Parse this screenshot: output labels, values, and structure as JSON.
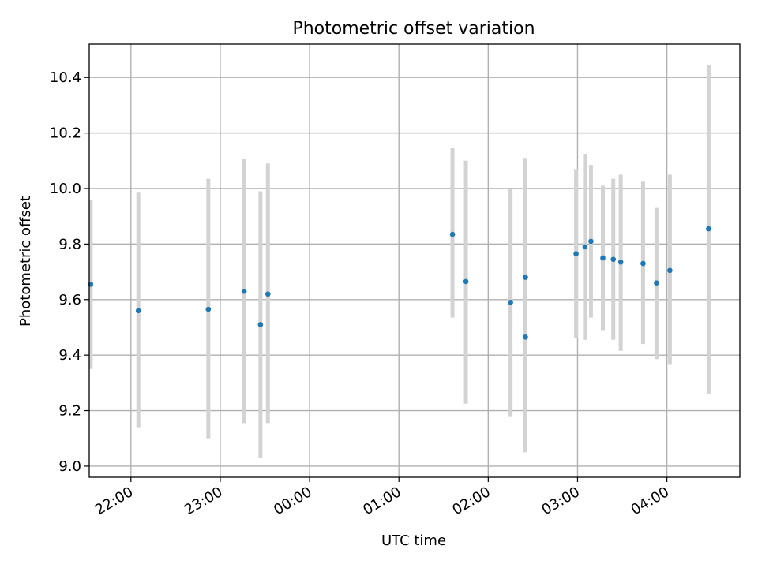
{
  "chart_data": {
    "type": "scatter",
    "title": "Photometric offset variation",
    "xlabel": "UTC time",
    "ylabel": "Photometric offset",
    "x_unit": "UTC time (HH:MM)",
    "xlim": [
      "21:32",
      "04:49"
    ],
    "ylim": [
      8.96,
      10.52
    ],
    "x_ticks": [
      "22:00",
      "23:00",
      "00:00",
      "01:00",
      "02:00",
      "03:00",
      "04:00"
    ],
    "y_ticks": [
      9.0,
      9.2,
      9.4,
      9.6,
      9.8,
      10.0,
      10.2,
      10.4
    ],
    "y_tick_labels": [
      "9.0",
      "9.2",
      "9.4",
      "9.6",
      "9.8",
      "10.0",
      "10.2",
      "10.4"
    ],
    "grid": true,
    "colors": {
      "point": "#1f77b4",
      "error_bar": "#d3d3d3"
    },
    "points": [
      {
        "t": "21:33",
        "y": 9.655,
        "lo": 9.35,
        "hi": 9.96
      },
      {
        "t": "22:05",
        "y": 9.56,
        "lo": 9.14,
        "hi": 9.985
      },
      {
        "t": "22:52",
        "y": 9.565,
        "lo": 9.1,
        "hi": 10.035
      },
      {
        "t": "23:16",
        "y": 9.63,
        "lo": 9.155,
        "hi": 10.105
      },
      {
        "t": "23:27",
        "y": 9.51,
        "lo": 9.03,
        "hi": 9.99
      },
      {
        "t": "23:32",
        "y": 9.62,
        "lo": 9.155,
        "hi": 10.09
      },
      {
        "t": "01:36",
        "y": 9.835,
        "lo": 9.535,
        "hi": 10.145
      },
      {
        "t": "01:45",
        "y": 9.665,
        "lo": 9.225,
        "hi": 10.1
      },
      {
        "t": "02:15",
        "y": 9.59,
        "lo": 9.18,
        "hi": 10.0
      },
      {
        "t": "02:25",
        "y": 9.465,
        "lo": 9.05,
        "hi": 9.885
      },
      {
        "t": "02:25",
        "y": 9.68,
        "lo": 9.245,
        "hi": 10.11
      },
      {
        "t": "02:59",
        "y": 9.765,
        "lo": 9.46,
        "hi": 10.07
      },
      {
        "t": "03:05",
        "y": 9.79,
        "lo": 9.455,
        "hi": 10.125
      },
      {
        "t": "03:09",
        "y": 9.81,
        "lo": 9.535,
        "hi": 10.085
      },
      {
        "t": "03:17",
        "y": 9.75,
        "lo": 9.49,
        "hi": 10.01
      },
      {
        "t": "03:24",
        "y": 9.745,
        "lo": 9.455,
        "hi": 10.035
      },
      {
        "t": "03:29",
        "y": 9.735,
        "lo": 9.415,
        "hi": 10.05
      },
      {
        "t": "03:44",
        "y": 9.73,
        "lo": 9.44,
        "hi": 10.025
      },
      {
        "t": "03:53",
        "y": 9.66,
        "lo": 9.385,
        "hi": 9.93
      },
      {
        "t": "04:02",
        "y": 9.705,
        "lo": 9.365,
        "hi": 10.05
      },
      {
        "t": "04:28",
        "y": 9.855,
        "lo": 9.26,
        "hi": 10.445
      }
    ]
  }
}
